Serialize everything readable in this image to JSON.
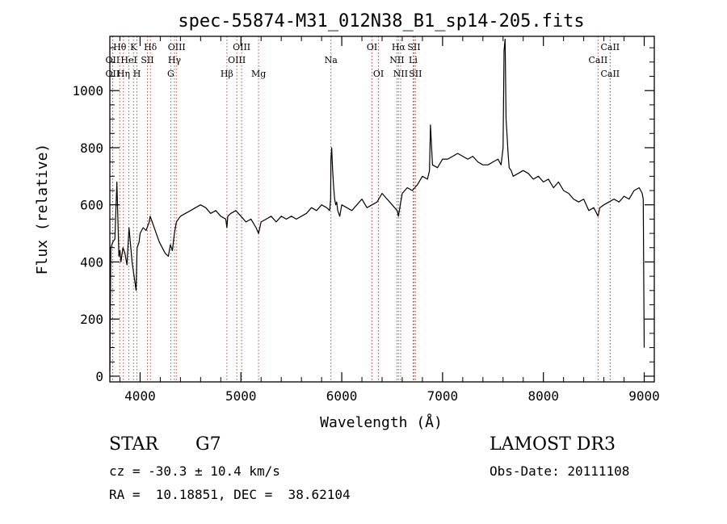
{
  "chart_data": {
    "type": "line",
    "title": "spec-55874-M31_012N38_B1_sp14-205.fits",
    "xlabel": "Wavelength (Å)",
    "ylabel": "Flux (relative)",
    "xlim": [
      3700,
      9100
    ],
    "ylim": [
      -20,
      1190
    ],
    "x_ticks": [
      4000,
      5000,
      6000,
      7000,
      8000,
      9000
    ],
    "y_ticks": [
      0,
      200,
      400,
      600,
      800,
      1000
    ],
    "x_tick_labels": [
      "4000",
      "5000",
      "6000",
      "7000",
      "8000",
      "9000"
    ],
    "y_tick_labels": [
      "0",
      "200",
      "400",
      "600",
      "800",
      "1000"
    ],
    "grid": false,
    "spectrum": {
      "x": [
        3700,
        3710,
        3730,
        3750,
        3770,
        3790,
        3800,
        3810,
        3830,
        3850,
        3870,
        3890,
        3900,
        3920,
        3940,
        3960,
        3970,
        3990,
        4000,
        4030,
        4060,
        4090,
        4100,
        4130,
        4160,
        4190,
        4220,
        4250,
        4280,
        4300,
        4320,
        4340,
        4360,
        4400,
        4450,
        4500,
        4550,
        4600,
        4650,
        4700,
        4750,
        4800,
        4850,
        4861,
        4870,
        4900,
        4950,
        5000,
        5050,
        5100,
        5150,
        5175,
        5200,
        5250,
        5300,
        5350,
        5400,
        5450,
        5500,
        5550,
        5600,
        5650,
        5700,
        5750,
        5800,
        5850,
        5880,
        5890,
        5893,
        5900,
        5910,
        5920,
        5930,
        5940,
        5950,
        5960,
        5980,
        6000,
        6050,
        6100,
        6150,
        6200,
        6250,
        6300,
        6350,
        6400,
        6450,
        6500,
        6550,
        6563,
        6580,
        6600,
        6650,
        6700,
        6750,
        6800,
        6850,
        6870,
        6880,
        6900,
        6950,
        7000,
        7050,
        7100,
        7150,
        7200,
        7250,
        7300,
        7350,
        7400,
        7450,
        7500,
        7550,
        7580,
        7600,
        7610,
        7620,
        7630,
        7640,
        7650,
        7660,
        7680,
        7700,
        7750,
        7800,
        7850,
        7900,
        7950,
        8000,
        8050,
        8100,
        8150,
        8200,
        8250,
        8300,
        8350,
        8400,
        8450,
        8500,
        8542,
        8560,
        8600,
        8650,
        8700,
        8750,
        8800,
        8850,
        8900,
        8950,
        8980,
        8990,
        9000
      ],
      "y": [
        20,
        450,
        470,
        480,
        680,
        420,
        440,
        400,
        450,
        430,
        390,
        520,
        480,
        400,
        350,
        300,
        450,
        470,
        500,
        520,
        510,
        540,
        560,
        530,
        500,
        470,
        450,
        430,
        420,
        460,
        440,
        500,
        540,
        560,
        570,
        580,
        590,
        600,
        590,
        570,
        580,
        560,
        550,
        520,
        560,
        570,
        580,
        560,
        540,
        550,
        520,
        500,
        540,
        550,
        560,
        540,
        560,
        550,
        560,
        550,
        560,
        570,
        590,
        580,
        600,
        590,
        580,
        620,
        760,
        800,
        720,
        660,
        620,
        600,
        610,
        580,
        560,
        600,
        590,
        580,
        600,
        620,
        590,
        600,
        610,
        640,
        620,
        600,
        580,
        560,
        600,
        640,
        660,
        650,
        670,
        700,
        690,
        720,
        880,
        740,
        730,
        760,
        760,
        770,
        780,
        770,
        760,
        770,
        750,
        740,
        740,
        750,
        760,
        740,
        800,
        1140,
        1180,
        900,
        840,
        780,
        730,
        720,
        700,
        710,
        720,
        710,
        690,
        700,
        680,
        690,
        660,
        680,
        650,
        640,
        620,
        610,
        620,
        580,
        590,
        560,
        590,
        600,
        610,
        620,
        610,
        630,
        620,
        650,
        660,
        640,
        620,
        100
      ]
    },
    "lines": [
      {
        "label": "Hθ",
        "x": 3798,
        "row": 1
      },
      {
        "label": "OII",
        "x": 3727,
        "row": 2
      },
      {
        "label": "OII",
        "x": 3727,
        "row": 3
      },
      {
        "label": "Hη",
        "x": 3835,
        "row": 3
      },
      {
        "label": "HeI",
        "x": 3889,
        "row": 2
      },
      {
        "label": "K",
        "x": 3934,
        "row": 1
      },
      {
        "label": "H",
        "x": 3969,
        "row": 3
      },
      {
        "label": "SII",
        "x": 4072,
        "row": 2
      },
      {
        "label": "Hδ",
        "x": 4102,
        "row": 1
      },
      {
        "label": "OIII",
        "x": 4363,
        "row": 1
      },
      {
        "label": "Hγ",
        "x": 4341,
        "row": 2
      },
      {
        "label": "G",
        "x": 4304,
        "row": 3
      },
      {
        "label": "Hβ",
        "x": 4861,
        "row": 3
      },
      {
        "label": "OIII",
        "x": 5007,
        "row": 1
      },
      {
        "label": "OIII",
        "x": 4959,
        "row": 2
      },
      {
        "label": "Mg",
        "x": 5175,
        "row": 3
      },
      {
        "label": "Na",
        "x": 5893,
        "row": 2
      },
      {
        "label": "OI",
        "x": 6300,
        "row": 1
      },
      {
        "label": "OI",
        "x": 6364,
        "row": 3
      },
      {
        "label": "Hα",
        "x": 6563,
        "row": 1
      },
      {
        "label": "SII",
        "x": 6716,
        "row": 1
      },
      {
        "label": "NII",
        "x": 6548,
        "row": 2
      },
      {
        "label": "Li",
        "x": 6708,
        "row": 2
      },
      {
        "label": "NII",
        "x": 6584,
        "row": 3
      },
      {
        "label": "SII",
        "x": 6731,
        "row": 3
      },
      {
        "label": "CaII",
        "x": 8662,
        "row": 1
      },
      {
        "label": "CaII",
        "x": 8542,
        "row": 2
      },
      {
        "label": "CaII",
        "x": 8662,
        "row": 3
      }
    ]
  },
  "info": {
    "class": "STAR",
    "subclass": "G7",
    "survey": "LAMOST DR3",
    "cz": "cz = -30.3 ± 10.4 km/s",
    "obs_date": "Obs-Date: 20111108",
    "coords": "RA =  10.18851, DEC =  38.62104"
  }
}
